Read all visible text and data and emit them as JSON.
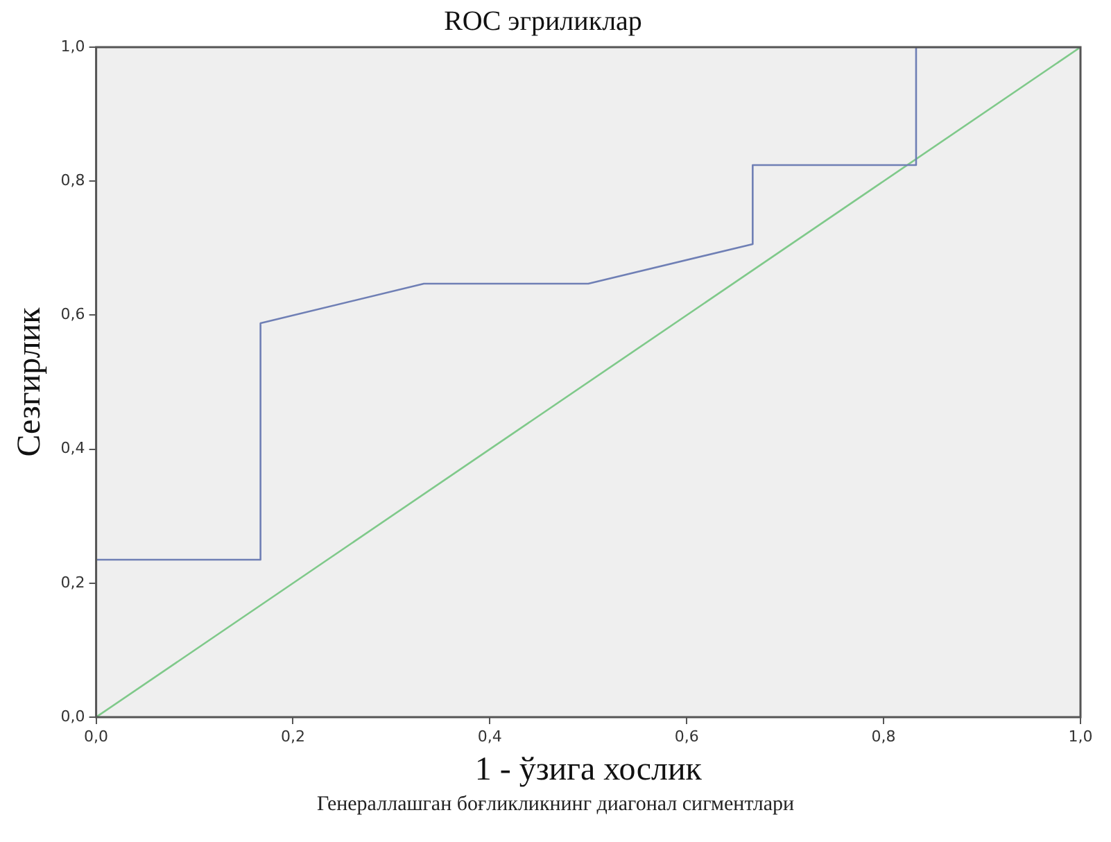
{
  "chart_data": {
    "type": "line",
    "title": "ROC эгриликлар",
    "xlabel": "1 - ўзига хослик",
    "ylabel": "Сезгирлик",
    "annotations": [
      "Генераллашган боғликликнинг диагонал сигментлари"
    ],
    "series": [
      {
        "color": "#6f7fb5",
        "x": [
          0,
          0,
          0.167,
          0.167,
          0.333,
          0.5,
          0.667,
          0.667,
          0.833,
          0.833,
          1
        ],
        "values": [
          0,
          0.235,
          0.235,
          0.588,
          0.647,
          0.647,
          0.706,
          0.824,
          0.824,
          1,
          1
        ]
      },
      {
        "color": "#7fc98a",
        "x": [
          0,
          1
        ],
        "values": [
          0,
          1
        ]
      }
    ],
    "xlim": [
      0,
      1
    ],
    "ylim": [
      0,
      1
    ],
    "xticks": [
      {
        "value": 0,
        "label": "0,0"
      },
      {
        "value": 0.2,
        "label": "0,2"
      },
      {
        "value": 0.4,
        "label": "0,4"
      },
      {
        "value": 0.6,
        "label": "0,6"
      },
      {
        "value": 0.8,
        "label": "0,8"
      },
      {
        "value": 1,
        "label": "1,0"
      }
    ],
    "yticks": [
      {
        "value": 0,
        "label": "0,0"
      },
      {
        "value": 0.2,
        "label": "0,2"
      },
      {
        "value": 0.4,
        "label": "0,4"
      },
      {
        "value": 0.6,
        "label": "0,6"
      },
      {
        "value": 0.8,
        "label": "0,8"
      },
      {
        "value": 1,
        "label": "1,0"
      }
    ],
    "grid": false,
    "legend": false,
    "marker": "none",
    "line_style": "solid"
  }
}
